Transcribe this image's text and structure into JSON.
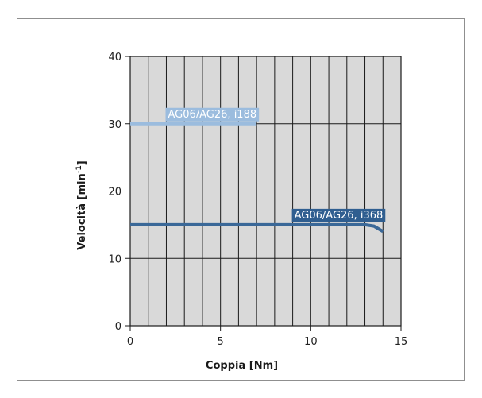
{
  "chart_data": {
    "type": "line",
    "title": "",
    "xlabel": "Coppia [Nm]",
    "ylabel": "Velocità [min",
    "ylabel_sup": "-1",
    "ylabel_end": "]",
    "xlim": [
      0,
      15
    ],
    "ylim": [
      0,
      40
    ],
    "x_ticks": [
      0,
      5,
      10,
      15
    ],
    "y_ticks": [
      0,
      10,
      20,
      30,
      40
    ],
    "x_minor_step": 1,
    "y_minor_step": 10,
    "grid": true,
    "colors": {
      "plot_background": "#d9d9d9",
      "grid": "#1a1a1a"
    },
    "series": [
      {
        "name": "AG06/AG26, i188",
        "color": "#9bbcde",
        "label_bg": "#9bbcde",
        "points": [
          [
            0,
            30
          ],
          [
            7,
            30
          ]
        ]
      },
      {
        "name": "AG06/AG26, i368",
        "color": "#3a6898",
        "label_bg": "#2f5e90",
        "points": [
          [
            0,
            15
          ],
          [
            13,
            15
          ],
          [
            13.5,
            14.8
          ],
          [
            14,
            14
          ]
        ]
      }
    ]
  }
}
